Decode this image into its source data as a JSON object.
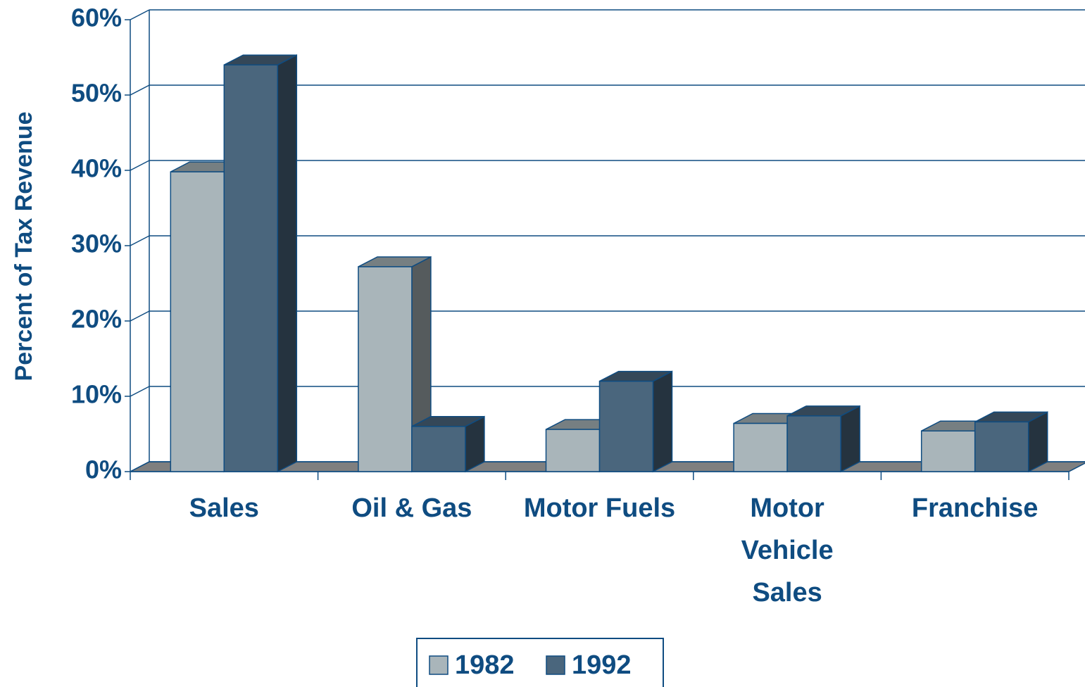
{
  "chart_data": {
    "type": "bar3d",
    "y_label": "Percent of Tax Revenue",
    "categories": [
      "Sales",
      "Oil & Gas",
      "Motor Fuels",
      "Motor Vehicle Sales",
      "Franchise"
    ],
    "series": [
      {
        "name": "1982",
        "color": "#a9b5ba",
        "values": [
          39.8,
          27.2,
          5.6,
          6.4,
          5.4
        ]
      },
      {
        "name": "1992",
        "color": "#4a667d",
        "values": [
          54,
          6,
          12,
          7.4,
          6.6
        ]
      }
    ],
    "ylim": [
      0,
      60
    ],
    "yticks": [
      {
        "value": 0,
        "label": "0%"
      },
      {
        "value": 10,
        "label": "10%"
      },
      {
        "value": 20,
        "label": "20%"
      },
      {
        "value": 30,
        "label": "30%"
      },
      {
        "value": 40,
        "label": "40%"
      },
      {
        "value": 50,
        "label": "50%"
      },
      {
        "value": 60,
        "label": "60%"
      }
    ],
    "grid": true
  }
}
